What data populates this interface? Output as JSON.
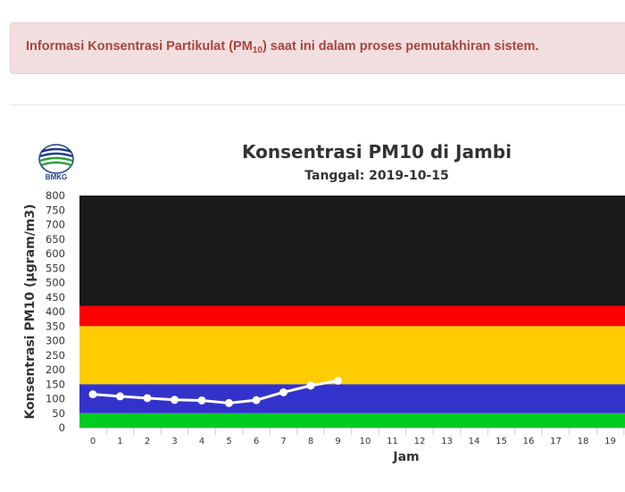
{
  "alert": {
    "text_before": "Informasi Konsentrasi Partikulat (PM",
    "subscript": "10",
    "text_after": ") saat ini dalam proses pemutakhiran sistem."
  },
  "logo": {
    "text": "BMKG"
  },
  "chart_data": {
    "type": "line",
    "title": "Konsentrasi PM10 di Jambi",
    "subtitle": "Tanggal: 2019-10-15",
    "xlabel": "Jam",
    "ylabel": "Konsentrasi PM10 (µgram/m3)",
    "ylim": [
      0,
      800
    ],
    "yticks": [
      0,
      50,
      100,
      150,
      200,
      250,
      300,
      350,
      400,
      450,
      500,
      550,
      600,
      650,
      700,
      750,
      800
    ],
    "x_categories": [
      "0",
      "1",
      "2",
      "3",
      "4",
      "5",
      "6",
      "7",
      "8",
      "9",
      "10",
      "11",
      "12",
      "13",
      "14",
      "15",
      "16",
      "17",
      "18",
      "19"
    ],
    "bands": [
      {
        "from": 0,
        "to": 50,
        "color": "#00cc22"
      },
      {
        "from": 50,
        "to": 150,
        "color": "#3333cc"
      },
      {
        "from": 150,
        "to": 350,
        "color": "#ffcc00"
      },
      {
        "from": 350,
        "to": 420,
        "color": "#ff0000"
      },
      {
        "from": 420,
        "to": 800,
        "color": "#1a1a1a"
      }
    ],
    "series": [
      {
        "x": [
          0,
          1,
          2,
          3,
          4,
          5,
          6,
          7,
          8,
          9
        ],
        "values": [
          115,
          108,
          102,
          96,
          94,
          85,
          95,
          122,
          145,
          162
        ],
        "color": "#ffffff"
      }
    ],
    "grid": false
  }
}
